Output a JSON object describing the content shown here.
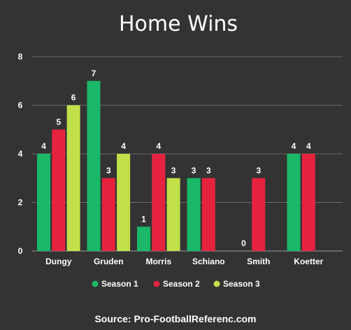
{
  "chart_data": {
    "type": "bar",
    "title": "Home Wins",
    "categories": [
      "Dungy",
      "Gruden",
      "Morris",
      "Schiano",
      "Smith",
      "Koetter"
    ],
    "series": [
      {
        "name": "Season 1",
        "color": "#1ab868",
        "values": [
          4,
          7,
          1,
          3,
          0,
          4
        ]
      },
      {
        "name": "Season 2",
        "color": "#e5233f",
        "values": [
          5,
          3,
          4,
          3,
          3,
          4
        ]
      },
      {
        "name": "Season 3",
        "color": "#c2e049",
        "values": [
          6,
          4,
          3,
          null,
          null,
          null
        ]
      }
    ],
    "ylim": [
      0,
      8
    ],
    "yticks": [
      0,
      2,
      4,
      6,
      8
    ],
    "grid": true,
    "legend_position": "bottom",
    "source": "Source: Pro-FootballReferenc.com"
  }
}
